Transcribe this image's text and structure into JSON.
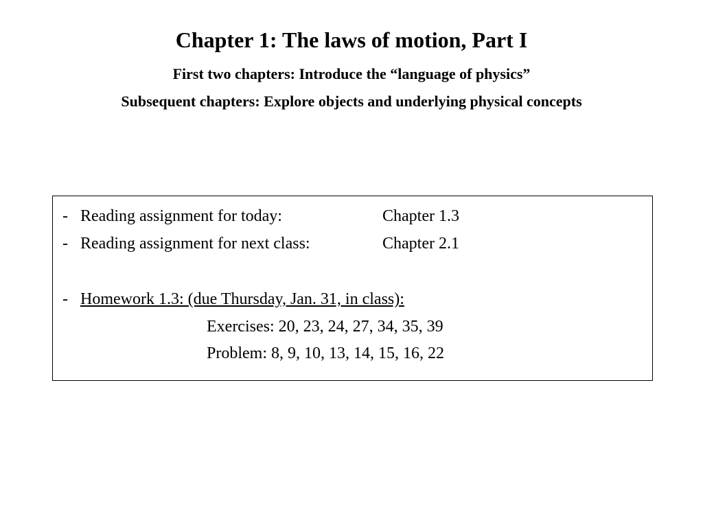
{
  "header": {
    "title": "Chapter 1:  The laws of motion, Part I",
    "subtitle1": "First two chapters: Introduce the “language of physics”",
    "subtitle2": "Subsequent chapters: Explore objects and underlying physical concepts"
  },
  "box": {
    "reading_today_label": "Reading assignment for today:",
    "reading_today_value": "Chapter 1.3",
    "reading_next_label": "Reading assignment for next class:",
    "reading_next_value": "Chapter 2.1",
    "homework_heading": "Homework 1.3: (due Thursday, Jan. 31, in class):",
    "exercises": "Exercises: 20, 23, 24, 27, 34, 35, 39",
    "problem": "Problem: 8, 9, 10, 13, 14, 15, 16, 22"
  },
  "style": {
    "background_color": "#ffffff",
    "text_color": "#000000",
    "title_fontsize": 32,
    "subtitle_fontsize": 22,
    "body_fontsize": 24,
    "box_border_color": "#000000",
    "font_family": "Times New Roman"
  }
}
